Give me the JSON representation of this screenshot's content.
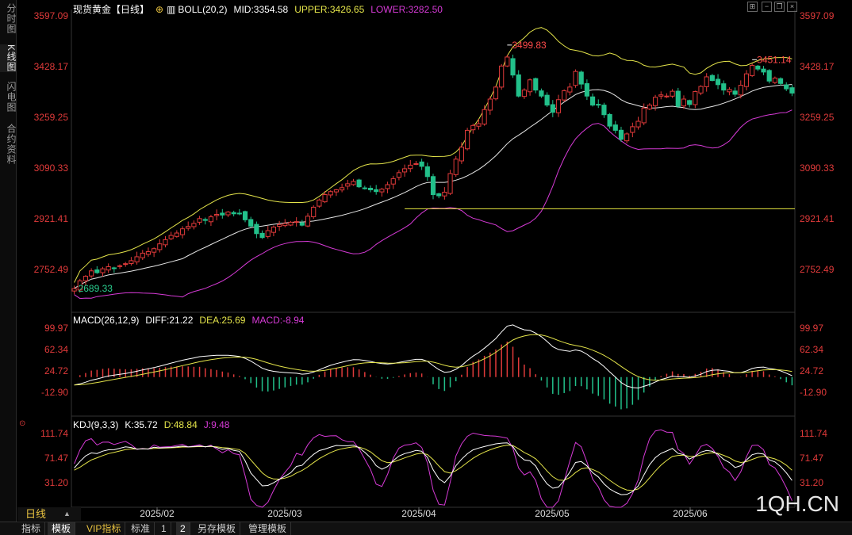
{
  "left_tabs": [
    "分时图",
    "K线图",
    "闪电图",
    "合约资料"
  ],
  "active_tab_index": 1,
  "main": {
    "title": "现货黄金【日线】",
    "indicator": "BOLL(20,2)",
    "mid": "MID:3354.58",
    "upper": "UPPER:3426.65",
    "lower": "LOWER:3282.50",
    "y_ticks": [
      "3597.09",
      "3428.17",
      "3259.25",
      "3090.33",
      "2921.41",
      "2752.49"
    ],
    "annotations": {
      "high": "3499.83",
      "recent_high": "3451.14",
      "low": "2689.33"
    },
    "support_level": 2955,
    "colors": {
      "up": "#e03a3a",
      "down": "#22c08a",
      "mid": "#e6e6e6",
      "upper": "#e4e44a",
      "lower": "#d63ad6",
      "support": "#e8e840"
    }
  },
  "macd": {
    "label": "MACD(26,12,9)",
    "diff": "DIFF:21.22",
    "dea": "DEA:25.69",
    "macd": "MACD:-8.94",
    "y_ticks": [
      "99.97",
      "62.34",
      "24.72",
      "-12.90"
    ]
  },
  "kdj": {
    "label": "KDJ(9,3,3)",
    "k": "K:35.72",
    "d": "D:48.84",
    "j": "J:9.48",
    "y_ticks": [
      "111.74",
      "71.47",
      "31.20"
    ]
  },
  "x_ticks": [
    "2025/02",
    "2025/03",
    "2025/04",
    "2025/05",
    "2025/06"
  ],
  "period": "日线",
  "bottom_tabs": [
    "指标",
    "模板",
    "VIP指标",
    "标准",
    "1",
    "2",
    "另存模板",
    "管理模板"
  ],
  "bottom_selected": [
    1,
    5
  ],
  "watermark": "1QH.CN",
  "chart_data": {
    "type": "candlestick",
    "title": "现货黄金【日线】",
    "x_range": [
      "2025-01-13",
      "2025-06-27"
    ],
    "ylim": [
      2689.33,
      3597.09
    ],
    "closes": [
      2689,
      2715,
      2730,
      2748,
      2742,
      2755,
      2762,
      2758,
      2765,
      2772,
      2782,
      2795,
      2807,
      2812,
      2822,
      2838,
      2852,
      2866,
      2874,
      2888,
      2896,
      2906,
      2922,
      2916,
      2928,
      2936,
      2934,
      2944,
      2938,
      2940,
      2918,
      2897,
      2872,
      2859,
      2882,
      2894,
      2902,
      2906,
      2910,
      2912,
      2900,
      2930,
      2960,
      2984,
      3002,
      3012,
      3018,
      3025,
      3038,
      3046,
      3028,
      3022,
      3018,
      3012,
      3020,
      3035,
      3055,
      3075,
      3088,
      3100,
      3105,
      3096,
      3062,
      3002,
      2998,
      3010,
      3072,
      3120,
      3160,
      3216,
      3232,
      3238,
      3285,
      3320,
      3360,
      3430,
      3460,
      3400,
      3330,
      3350,
      3384,
      3350,
      3330,
      3300,
      3276,
      3318,
      3348,
      3360,
      3412,
      3370,
      3330,
      3300,
      3302,
      3268,
      3230,
      3216,
      3186,
      3204,
      3228,
      3246,
      3290,
      3300,
      3326,
      3334,
      3330,
      3346,
      3296,
      3320,
      3302,
      3345,
      3362,
      3394,
      3382,
      3368,
      3350,
      3352,
      3336,
      3366,
      3404,
      3432,
      3420,
      3410,
      3380,
      3390,
      3372,
      3354,
      3340
    ]
  }
}
